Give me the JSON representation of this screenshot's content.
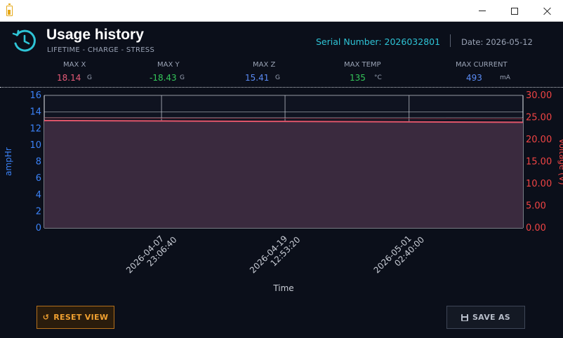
{
  "window": {
    "title": ""
  },
  "header": {
    "title": "Usage history",
    "subtitle": "LIFETIME - CHARGE - STRESS",
    "serial": "Serial Number: 2026032801",
    "date": "Date: 2026-05-12"
  },
  "stats": [
    {
      "label": "MAX X",
      "value": "18.14",
      "unit": "G",
      "color": "#e85b78"
    },
    {
      "label": "MAX Y",
      "value": "-18.43",
      "unit": "G",
      "color": "#34c759"
    },
    {
      "label": "MAX Z",
      "value": "15.41",
      "unit": "G",
      "color": "#5b8cf5"
    },
    {
      "label": "MAX TEMP",
      "value": "135",
      "unit": "°C",
      "color": "#34c759"
    },
    {
      "label": "MAX CURRENT",
      "value": "493",
      "unit": "mA",
      "color": "#5b8cf5"
    }
  ],
  "chart_data": {
    "type": "line",
    "xlabel": "Time",
    "ylabel": "ampHr",
    "y2label": "Voltage (V)",
    "ylim": [
      0,
      16
    ],
    "y2lim": [
      0,
      30
    ],
    "yticks": [
      "0",
      "2",
      "4",
      "6",
      "8",
      "10",
      "12",
      "14",
      "16"
    ],
    "y2ticks": [
      "0.00",
      "5.00",
      "10.00",
      "15.00",
      "20.00",
      "25.00",
      "30.00"
    ],
    "xticks": [
      {
        "line1": "2026-04-07",
        "line2": "23:06:40"
      },
      {
        "line1": "2026-04-19",
        "line2": "12:53:20"
      },
      {
        "line1": "2026-05-01",
        "line2": "02:40:00"
      }
    ],
    "grid": true,
    "series": [
      {
        "axis": "y2",
        "color": "#e0556a",
        "fill": "#3a2a3e",
        "x_frac": [
          0,
          0.25,
          0.5,
          0.75,
          1.0
        ],
        "values": [
          24.3,
          24.2,
          24.1,
          24.0,
          23.9
        ]
      },
      {
        "axis": "y2",
        "color": "#8a3a4a",
        "x_frac": [
          0,
          0.25,
          0.5,
          0.75,
          1.0
        ],
        "values": [
          24.9,
          24.85,
          24.8,
          24.75,
          24.7
        ]
      }
    ]
  },
  "buttons": {
    "reset": "RESET VIEW",
    "save": "SAVE AS"
  },
  "colors": {
    "accent": "#2ec4d6",
    "left_axis": "#3b82f6",
    "right_axis": "#ef4444",
    "reset_border": "#b5701b"
  }
}
